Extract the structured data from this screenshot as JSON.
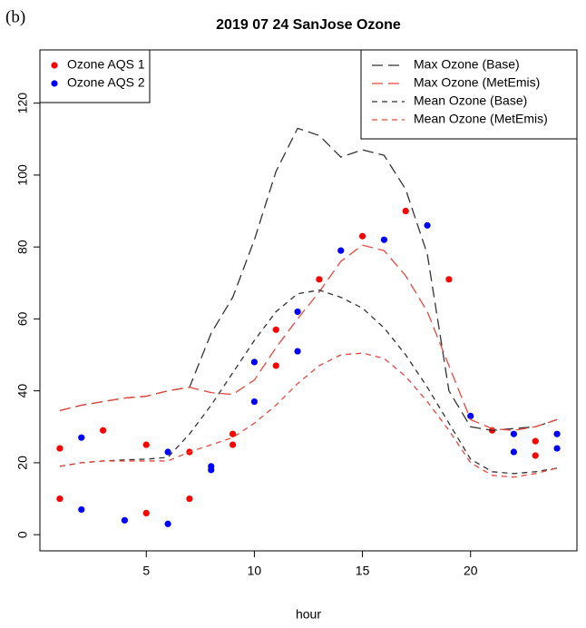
{
  "panel_label": "(b)",
  "chart_data": {
    "type": "line",
    "title": "2019 07 24 SanJose Ozone",
    "x_label": "hour",
    "xlim": [
      0.08,
      24.92
    ],
    "ylim": [
      -4.5,
      134.8
    ],
    "xticks": [
      5,
      10,
      15,
      20
    ],
    "yticks": [
      0,
      20,
      40,
      60,
      80,
      100,
      120
    ],
    "x": [
      1,
      2,
      3,
      4,
      5,
      6,
      7,
      8,
      9,
      10,
      11,
      12,
      13,
      14,
      15,
      16,
      17,
      18,
      19,
      20,
      21,
      22,
      23,
      24
    ],
    "series": [
      {
        "name": "Ozone AQS 1",
        "color": "#ff0000",
        "style": "points",
        "legend": "topleft",
        "x": [
          1,
          1,
          3,
          5,
          5,
          7,
          7,
          9,
          9,
          11,
          11,
          13,
          15,
          17,
          19,
          21,
          23,
          23
        ],
        "values": [
          24,
          10,
          29,
          25,
          6,
          23,
          10,
          28,
          25,
          57,
          47,
          71,
          83,
          90,
          71,
          29,
          26,
          22
        ]
      },
      {
        "name": "Ozone AQS 2",
        "color": "#0000ff",
        "style": "points",
        "legend": "topleft",
        "x": [
          2,
          2,
          4,
          6,
          6,
          8,
          8,
          10,
          10,
          12,
          12,
          14,
          16,
          18,
          20,
          22,
          22,
          24,
          24
        ],
        "values": [
          27,
          7,
          4,
          23,
          3,
          19,
          18,
          48,
          37,
          62,
          51,
          79,
          82,
          86,
          33,
          28,
          23,
          28,
          24
        ]
      },
      {
        "name": "Max Ozone (Base)",
        "color": "#333333",
        "style": "long-dash",
        "legend": "topright",
        "values": [
          34.5,
          36,
          37,
          38,
          38.5,
          40,
          41,
          56,
          66,
          82,
          101,
          113,
          111,
          105,
          107,
          105.5,
          96,
          78,
          40,
          30,
          29,
          29.5,
          30,
          32
        ]
      },
      {
        "name": "Max Ozone (MetEmis)",
        "color": "#e8473f",
        "style": "long-dash",
        "legend": "topright",
        "values": [
          34.5,
          36,
          37,
          38,
          38.5,
          40,
          41,
          39.5,
          39,
          43,
          52,
          60,
          67.5,
          76,
          80.5,
          79,
          72,
          62,
          47,
          32,
          29.5,
          29,
          30,
          32
        ]
      },
      {
        "name": "Mean Ozone (Base)",
        "color": "#333333",
        "style": "short-dash",
        "legend": "topright",
        "values": [
          19,
          20,
          20.5,
          20.8,
          21,
          21.5,
          28,
          36,
          45,
          54,
          62,
          67,
          68,
          66,
          63,
          57.5,
          50,
          41,
          31,
          21,
          17.5,
          17,
          17.5,
          18.5
        ]
      },
      {
        "name": "Mean Ozone (MetEmis)",
        "color": "#e8473f",
        "style": "short-dash",
        "legend": "topright",
        "values": [
          19,
          20,
          20.5,
          20.5,
          20.5,
          20.5,
          23,
          25,
          27,
          31,
          36,
          42,
          47,
          50,
          50.5,
          49,
          44,
          37,
          29,
          20,
          16.5,
          16,
          17,
          18.5
        ]
      }
    ]
  }
}
